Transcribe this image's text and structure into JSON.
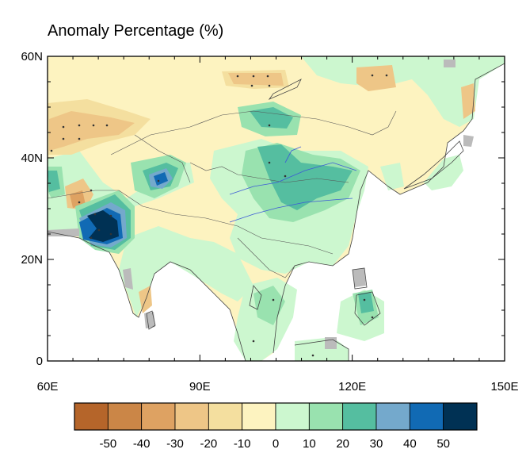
{
  "title": "Anomaly Percentage (%)",
  "map": {
    "lon_range": [
      60,
      150
    ],
    "lat_range": [
      0,
      60
    ],
    "lat_ticks": [
      {
        "value": 60,
        "label": "60N"
      },
      {
        "value": 40,
        "label": "40N"
      },
      {
        "value": 20,
        "label": "20N"
      },
      {
        "value": 0,
        "label": "0"
      }
    ],
    "lon_ticks": [
      {
        "value": 60,
        "label": "60E"
      },
      {
        "value": 90,
        "label": "90E"
      },
      {
        "value": 120,
        "label": "120E"
      },
      {
        "value": 150,
        "label": "150E"
      }
    ]
  },
  "colorbar": {
    "colors": [
      "#b5652a",
      "#cb8647",
      "#dea262",
      "#eec687",
      "#f4df9f",
      "#fdf3c0",
      "#ccf7cf",
      "#99e2af",
      "#55bea0",
      "#74a9cc",
      "#116ab4",
      "#003154"
    ],
    "labels": [
      "-50",
      "-40",
      "-30",
      "-20",
      "-10",
      "0",
      "10",
      "20",
      "30",
      "40",
      "50"
    ]
  },
  "colors": {
    "ocean": "#ffffff",
    "missing": "#bbbbbb",
    "border": "#444444",
    "river": "#3d5bd6"
  }
}
